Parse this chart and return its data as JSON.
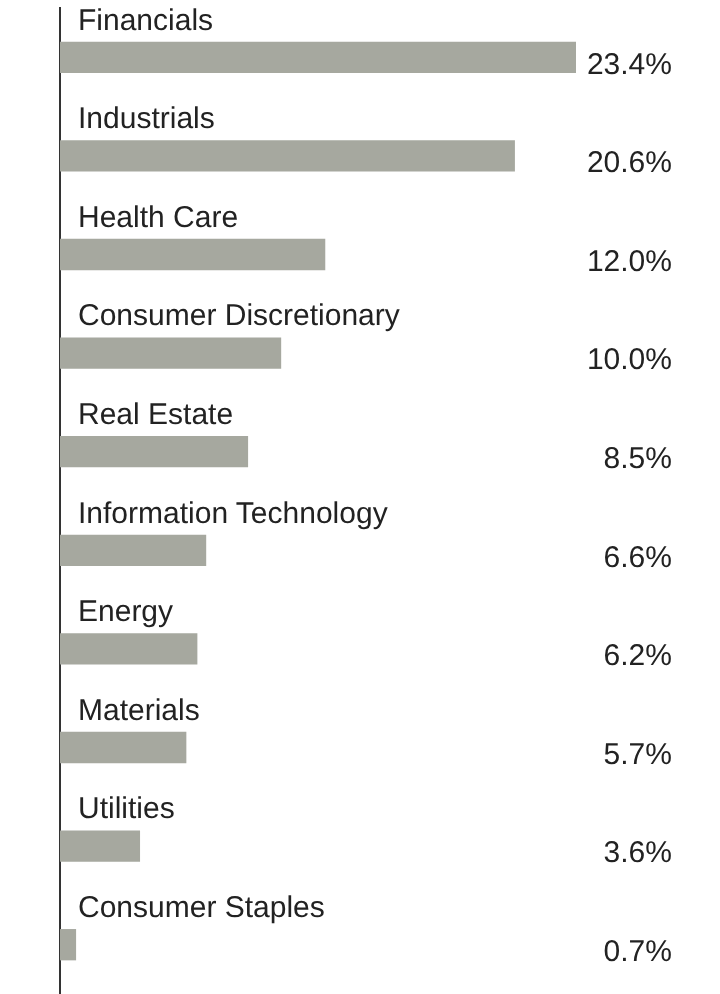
{
  "chart_data": {
    "type": "bar",
    "orientation": "horizontal",
    "categories": [
      "Financials",
      "Industrials",
      "Health Care",
      "Consumer Discretionary",
      "Real Estate",
      "Information Technology",
      "Energy",
      "Materials",
      "Utilities",
      "Consumer Staples"
    ],
    "values": [
      23.4,
      20.6,
      12.0,
      10.0,
      8.5,
      6.6,
      6.2,
      5.7,
      3.6,
      0.7
    ],
    "value_labels": [
      "23.4%",
      "20.6%",
      "12.0%",
      "10.0%",
      "8.5%",
      "6.6%",
      "6.2%",
      "5.7%",
      "3.6%",
      "0.7%"
    ],
    "color": "#a6a89f",
    "legend": false
  }
}
